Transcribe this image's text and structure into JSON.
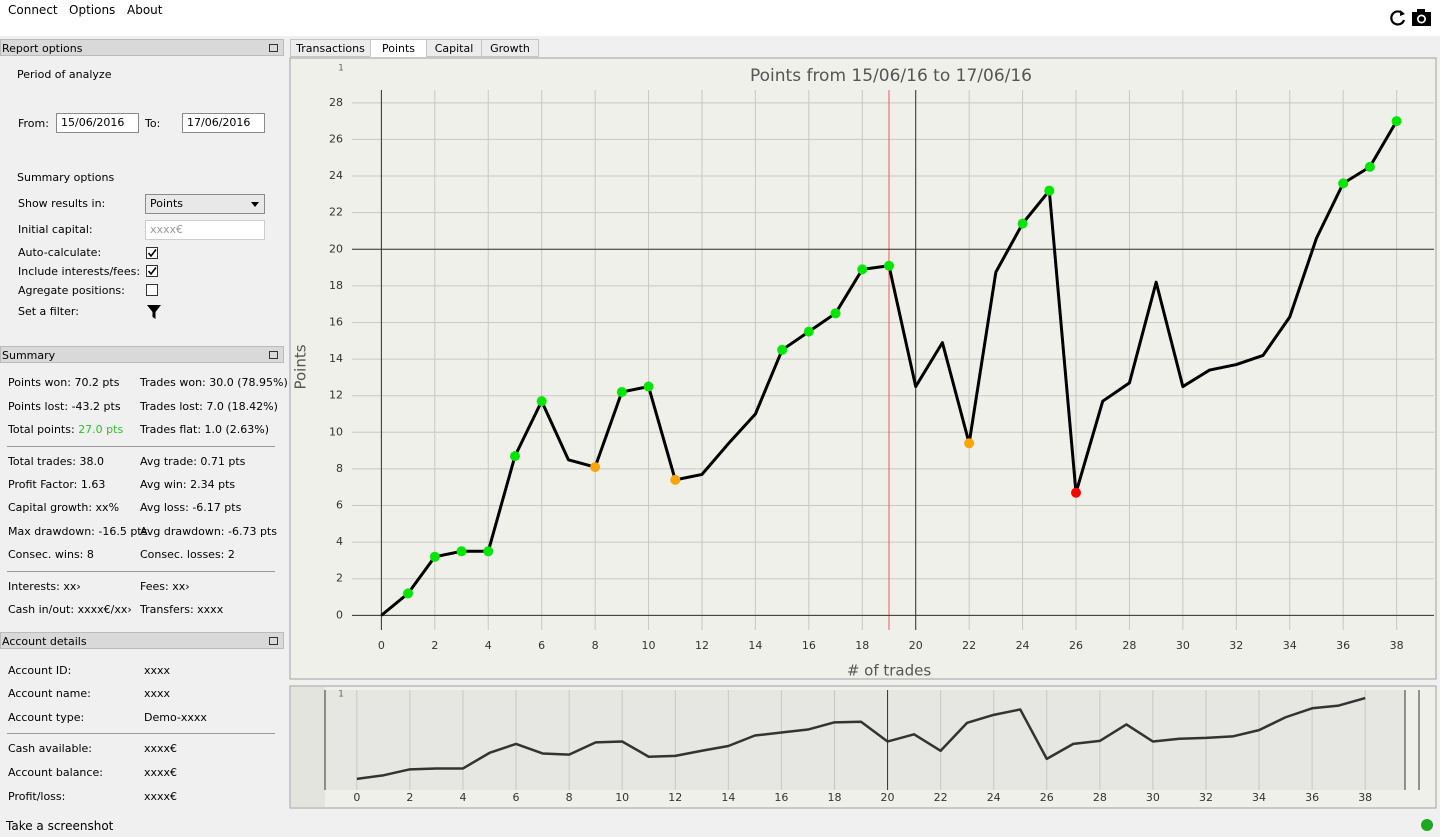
{
  "menu": [
    "Connect",
    "Options",
    "About"
  ],
  "report_options": {
    "title": "Report options",
    "period_label": "Period of analyze",
    "from_label": "From:",
    "from_value": "15/06/2016",
    "to_label": "To:",
    "to_value": "17/06/2016",
    "summary_options_label": "Summary options",
    "show_results_label": "Show results in:",
    "show_results_value": "Points",
    "initial_capital_label": "Initial capital:",
    "initial_capital_placeholder": "xxxx€",
    "auto_calculate_label": "Auto-calculate:",
    "auto_calculate_checked": true,
    "include_fees_label": "Include interests/fees:",
    "include_fees_checked": true,
    "aggregate_label": "Agregate positions:",
    "aggregate_checked": false,
    "filter_label": "Set a filter:"
  },
  "summary": {
    "title": "Summary",
    "groups": [
      [
        {
          "left": "Points won: 70.2 pts",
          "right": "Trades won: 30.0 (78.95%)"
        },
        {
          "left": "Points lost: -43.2 pts",
          "right": "Trades lost: 7.0 (18.42%)"
        },
        {
          "left": "Total points:",
          "left_value": "27.0 pts",
          "right": "Trades flat: 1.0 (2.63%)"
        }
      ],
      [
        {
          "left": "Total trades: 38.0",
          "right": "Avg trade: 0.71 pts"
        },
        {
          "left": "Profit Factor: 1.63",
          "right": "Avg win: 2.34 pts"
        },
        {
          "left": "Capital growth: xx%",
          "right": "Avg loss: -6.17 pts"
        },
        {
          "left": "Max drawdown: -16.5 pts",
          "right": "Avg drawdown: -6.73 pts"
        },
        {
          "left": "Consec. wins: 8",
          "right": "Consec. losses: 2"
        }
      ],
      [
        {
          "left": "Interests: xx›",
          "right": "Fees: xx›"
        },
        {
          "left": "Cash in/out: xxxx€/xx›",
          "right": "Transfers: xxxx"
        }
      ]
    ]
  },
  "account_details": {
    "title": "Account details",
    "groups": [
      [
        {
          "label": "Account ID:",
          "value": "xxxx"
        },
        {
          "label": "Account name:",
          "value": "xxxx"
        },
        {
          "label": "Account type:",
          "value": "Demo-xxxx"
        }
      ],
      [
        {
          "label": "Cash available:",
          "value": "xxxx€"
        },
        {
          "label": "Account balance:",
          "value": "xxxx€"
        },
        {
          "label": "Profit/loss:",
          "value": "xxxx€"
        }
      ]
    ]
  },
  "tabs": [
    "Transactions",
    "Points",
    "Capital",
    "Growth"
  ],
  "active_tab": 1,
  "status": "Take a screenshot",
  "chart_data": [
    {
      "type": "line",
      "title": "Points from 15/06/16 to 17/06/16",
      "x_label": "# of trades",
      "y_label": "Points",
      "annotation": "1",
      "x": [
        0,
        1,
        2,
        3,
        4,
        5,
        6,
        7,
        8,
        9,
        10,
        11,
        12,
        13,
        14,
        15,
        16,
        17,
        18,
        19,
        20,
        21,
        22,
        23,
        24,
        25,
        26,
        27,
        28,
        29,
        30,
        31,
        32,
        33,
        34,
        35,
        36,
        37,
        38
      ],
      "values": [
        0,
        1.2,
        3.2,
        3.5,
        3.5,
        8.7,
        11.7,
        8.5,
        8.1,
        12.2,
        12.5,
        7.4,
        7.7,
        9.4,
        11.0,
        14.5,
        15.5,
        16.5,
        18.9,
        19.1,
        12.5,
        14.9,
        9.4,
        18.75,
        21.4,
        23.2,
        6.7,
        11.7,
        12.7,
        18.2,
        12.5,
        13.4,
        13.7,
        14.2,
        16.3,
        20.6,
        23.6,
        24.5,
        27.0
      ],
      "marker_colors": [
        null,
        "#00e600",
        "#00e600",
        "#00e600",
        "#00e600",
        "#00e600",
        "#00e600",
        null,
        "#ffa500",
        "#00e600",
        "#00e600",
        "#ffa500",
        null,
        null,
        null,
        "#00e600",
        "#00e600",
        "#00e600",
        "#00e600",
        "#00e600",
        null,
        null,
        "#ffa500",
        null,
        "#00e600",
        "#00e600",
        "#ff0000",
        null,
        null,
        null,
        null,
        null,
        null,
        null,
        null,
        null,
        "#00e600",
        "#00e600",
        "#00e600"
      ],
      "color": "#000000",
      "grid": true,
      "highlight_x": 19,
      "highlight_color": "#e06060",
      "crosshair_x": 20,
      "crosshair_y": 20,
      "xlim": [
        -1.1,
        39.4
      ],
      "ylim": [
        -0.8,
        28.7
      ],
      "xticks": [
        0,
        2,
        4,
        6,
        8,
        10,
        12,
        14,
        16,
        18,
        20,
        22,
        24,
        26,
        28,
        30,
        32,
        34,
        36,
        38
      ],
      "yticks": [
        0,
        2,
        4,
        6,
        8,
        10,
        12,
        14,
        16,
        18,
        20,
        22,
        24,
        26,
        28
      ]
    },
    {
      "type": "line",
      "annotation": "1",
      "color": "#333333",
      "grid": true,
      "x": [
        0,
        1,
        2,
        3,
        4,
        5,
        6,
        7,
        8,
        9,
        10,
        11,
        12,
        13,
        14,
        15,
        16,
        17,
        18,
        19,
        20,
        21,
        22,
        23,
        24,
        25,
        26,
        27,
        28,
        29,
        30,
        31,
        32,
        33,
        34,
        35,
        36,
        37,
        38
      ],
      "values": [
        0,
        1.2,
        3.2,
        3.5,
        3.5,
        8.7,
        11.7,
        8.5,
        8.1,
        12.2,
        12.5,
        7.4,
        7.7,
        9.4,
        11.0,
        14.5,
        15.5,
        16.5,
        18.9,
        19.1,
        12.5,
        14.9,
        9.4,
        18.75,
        21.4,
        23.2,
        6.7,
        11.7,
        12.7,
        18.2,
        12.5,
        13.4,
        13.7,
        14.2,
        16.3,
        20.6,
        23.6,
        24.5,
        27.0
      ],
      "crosshair_x": 20,
      "xlim": [
        -1.2,
        39.5
      ],
      "ylim": [
        -3.7,
        29.7
      ],
      "xticks": [
        0,
        2,
        4,
        6,
        8,
        10,
        12,
        14,
        16,
        18,
        20,
        22,
        24,
        26,
        28,
        30,
        32,
        34,
        36,
        38
      ]
    }
  ]
}
